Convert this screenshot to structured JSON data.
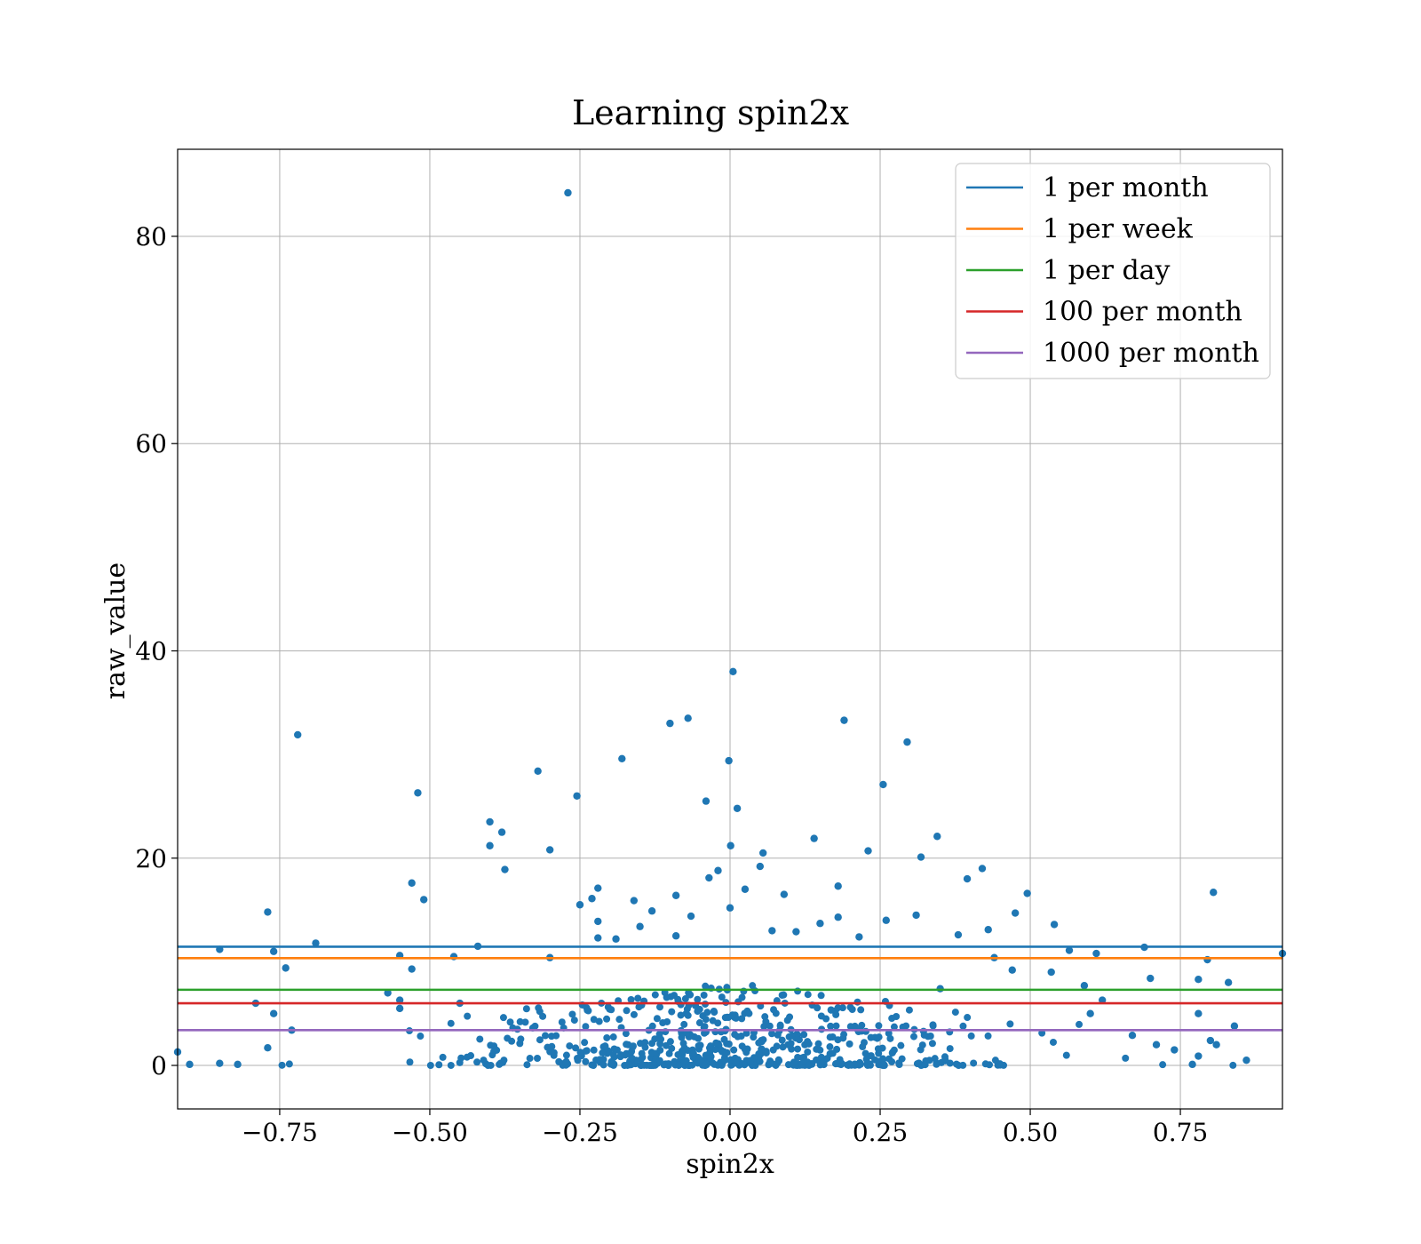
{
  "chart_data": {
    "type": "scatter",
    "title": "Learning spin2x",
    "xlabel": "spin2x",
    "ylabel": "raw_value",
    "xlim": [
      -0.92,
      0.92
    ],
    "ylim": [
      -4.2,
      88.4
    ],
    "x_ticks": [
      -0.75,
      -0.5,
      -0.25,
      0.0,
      0.25,
      0.5,
      0.75
    ],
    "x_tick_labels": [
      "−0.75",
      "−0.50",
      "−0.25",
      "0.00",
      "0.25",
      "0.50",
      "0.75"
    ],
    "y_ticks": [
      0,
      20,
      40,
      60,
      80
    ],
    "y_tick_labels": [
      "0",
      "20",
      "40",
      "60",
      "80"
    ],
    "grid": true,
    "legend_position": "top-right",
    "scatter_color": "#1f77b4",
    "scatter_points_highlighted": [
      {
        "x": -0.27,
        "y": 84.2
      },
      {
        "x": 0.005,
        "y": 38.0
      },
      {
        "x": -0.72,
        "y": 31.9
      },
      {
        "x": -0.07,
        "y": 33.5
      },
      {
        "x": -0.1,
        "y": 33.0
      },
      {
        "x": 0.19,
        "y": 33.3
      },
      {
        "x": 0.295,
        "y": 31.2
      },
      {
        "x": -0.18,
        "y": 29.6
      },
      {
        "x": -0.002,
        "y": 29.4
      },
      {
        "x": -0.32,
        "y": 28.4
      },
      {
        "x": 0.255,
        "y": 27.1
      },
      {
        "x": -0.52,
        "y": 26.3
      },
      {
        "x": -0.255,
        "y": 26.0
      },
      {
        "x": -0.04,
        "y": 25.5
      },
      {
        "x": 0.012,
        "y": 24.8
      },
      {
        "x": -0.4,
        "y": 23.5
      },
      {
        "x": -0.38,
        "y": 22.5
      },
      {
        "x": 0.345,
        "y": 22.1
      },
      {
        "x": 0.14,
        "y": 21.9
      },
      {
        "x": -0.4,
        "y": 21.2
      },
      {
        "x": 0.001,
        "y": 21.2
      },
      {
        "x": -0.3,
        "y": 20.8
      },
      {
        "x": 0.23,
        "y": 20.7
      },
      {
        "x": 0.055,
        "y": 20.5
      },
      {
        "x": 0.318,
        "y": 20.1
      },
      {
        "x": 0.42,
        "y": 19.0
      },
      {
        "x": -0.375,
        "y": 18.9
      },
      {
        "x": 0.05,
        "y": 19.2
      },
      {
        "x": -0.02,
        "y": 18.8
      },
      {
        "x": -0.035,
        "y": 18.1
      },
      {
        "x": 0.395,
        "y": 18.0
      },
      {
        "x": -0.53,
        "y": 17.6
      },
      {
        "x": 0.18,
        "y": 17.3
      },
      {
        "x": -0.22,
        "y": 17.1
      },
      {
        "x": 0.025,
        "y": 17.0
      },
      {
        "x": 0.805,
        "y": 16.7
      },
      {
        "x": 0.495,
        "y": 16.6
      },
      {
        "x": 0.09,
        "y": 16.5
      },
      {
        "x": -0.09,
        "y": 16.4
      },
      {
        "x": -0.23,
        "y": 16.1
      },
      {
        "x": -0.51,
        "y": 16.0
      },
      {
        "x": -0.16,
        "y": 15.9
      },
      {
        "x": -0.25,
        "y": 15.5
      },
      {
        "x": 0.0,
        "y": 15.2
      },
      {
        "x": -0.77,
        "y": 14.8
      },
      {
        "x": 0.475,
        "y": 14.7
      },
      {
        "x": -0.13,
        "y": 14.9
      },
      {
        "x": 0.31,
        "y": 14.5
      },
      {
        "x": -0.065,
        "y": 14.4
      },
      {
        "x": 0.18,
        "y": 14.3
      },
      {
        "x": 0.26,
        "y": 14.0
      },
      {
        "x": 0.54,
        "y": 13.6
      },
      {
        "x": -0.22,
        "y": 13.9
      },
      {
        "x": 0.15,
        "y": 13.7
      },
      {
        "x": 0.43,
        "y": 13.1
      },
      {
        "x": 0.07,
        "y": 13.0
      },
      {
        "x": -0.15,
        "y": 13.4
      },
      {
        "x": -0.09,
        "y": 12.5
      },
      {
        "x": 0.38,
        "y": 12.6
      },
      {
        "x": 0.11,
        "y": 12.9
      },
      {
        "x": -0.22,
        "y": 12.3
      },
      {
        "x": 0.215,
        "y": 12.4
      },
      {
        "x": -0.19,
        "y": 12.2
      },
      {
        "x": -0.69,
        "y": 11.8
      },
      {
        "x": 0.69,
        "y": 11.4
      },
      {
        "x": -0.85,
        "y": 11.2
      },
      {
        "x": -0.76,
        "y": 11.0
      },
      {
        "x": -0.42,
        "y": 11.5
      },
      {
        "x": 0.565,
        "y": 11.1
      },
      {
        "x": 0.61,
        "y": 10.8
      },
      {
        "x": 0.795,
        "y": 10.2
      },
      {
        "x": 0.92,
        "y": 10.8
      },
      {
        "x": 0.44,
        "y": 10.4
      },
      {
        "x": -0.55,
        "y": 10.6
      },
      {
        "x": -0.46,
        "y": 10.5
      },
      {
        "x": -0.3,
        "y": 10.4
      },
      {
        "x": -0.74,
        "y": 9.4
      },
      {
        "x": -0.53,
        "y": 9.3
      },
      {
        "x": 0.535,
        "y": 9.0
      },
      {
        "x": 0.47,
        "y": 9.2
      },
      {
        "x": 0.7,
        "y": 8.4
      },
      {
        "x": 0.78,
        "y": 8.3
      },
      {
        "x": 0.83,
        "y": 8.0
      },
      {
        "x": 0.59,
        "y": 7.7
      },
      {
        "x": 0.35,
        "y": 7.4
      },
      {
        "x": -0.57,
        "y": 7.0
      },
      {
        "x": 0.62,
        "y": 6.3
      },
      {
        "x": -0.79,
        "y": 6.0
      },
      {
        "x": -0.55,
        "y": 6.3
      },
      {
        "x": -0.45,
        "y": 6.0
      },
      {
        "x": 0.6,
        "y": 5.0
      },
      {
        "x": 0.78,
        "y": 5.0
      },
      {
        "x": -0.76,
        "y": 5.0
      },
      {
        "x": -0.55,
        "y": 5.5
      },
      {
        "x": -0.73,
        "y": 3.4
      },
      {
        "x": 0.84,
        "y": 3.8
      },
      {
        "x": 0.67,
        "y": 2.9
      },
      {
        "x": -0.77,
        "y": 1.7
      },
      {
        "x": 0.8,
        "y": 2.4
      },
      {
        "x": 0.81,
        "y": 2.0
      },
      {
        "x": 0.71,
        "y": 2.0
      },
      {
        "x": 0.74,
        "y": 1.5
      },
      {
        "x": -0.92,
        "y": 1.3
      },
      {
        "x": -0.9,
        "y": 0.1
      },
      {
        "x": -0.85,
        "y": 0.2
      },
      {
        "x": -0.82,
        "y": 0.1
      },
      {
        "x": 0.86,
        "y": 0.5
      },
      {
        "x": 0.78,
        "y": 0.9
      },
      {
        "x": 0.77,
        "y": 0.1
      }
    ],
    "reference_lines": [
      {
        "name": "1 per month",
        "y": 11.45,
        "color": "#1f77b4"
      },
      {
        "name": "1 per week",
        "y": 10.35,
        "color": "#ff7f0e"
      },
      {
        "name": "1 per day",
        "y": 7.3,
        "color": "#2ca02c"
      },
      {
        "name": "100 per month",
        "y": 6.0,
        "color": "#d62728"
      },
      {
        "name": "1000 per month",
        "y": 3.4,
        "color": "#9467bd"
      }
    ],
    "dense_cluster": {
      "x_center": 0.0,
      "x_sigma": 0.22,
      "y_max_typical": 8.0,
      "count": 620
    }
  }
}
